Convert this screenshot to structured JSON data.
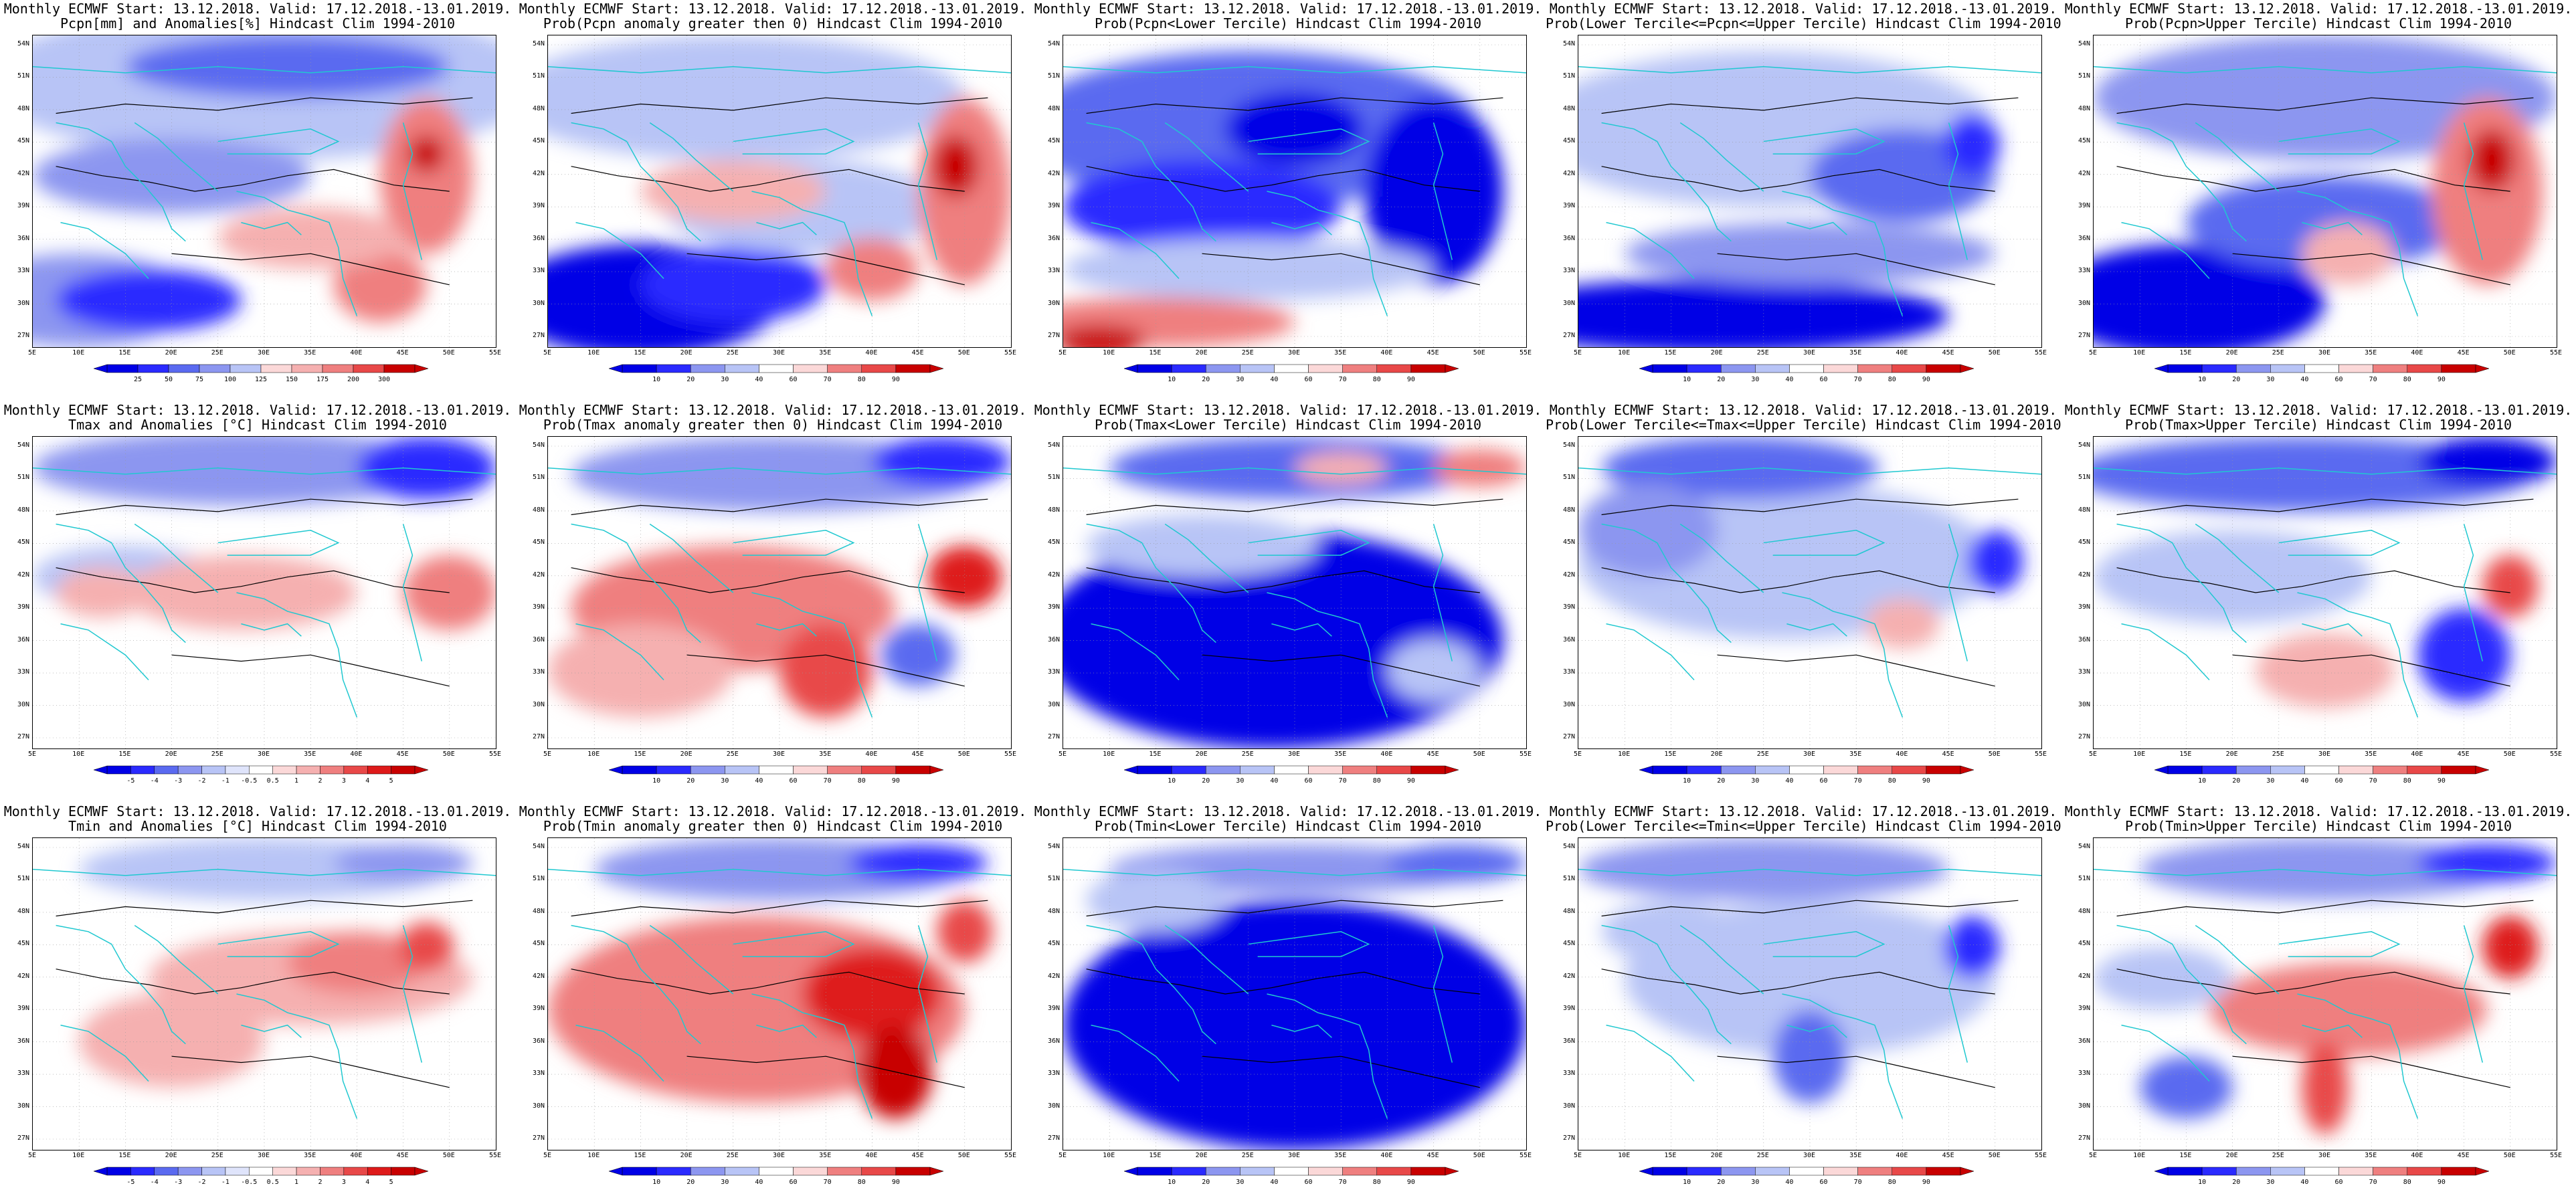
{
  "lat_labels": [
    "54N",
    "51N",
    "48N",
    "45N",
    "42N",
    "39N",
    "36N",
    "33N",
    "30N",
    "27N"
  ],
  "lon_labels": [
    "5E",
    "10E",
    "15E",
    "20E",
    "25E",
    "30E",
    "35E",
    "40E",
    "45E",
    "50E",
    "55E"
  ],
  "colors": {
    "blues": [
      "#0000e6",
      "#2a2aff",
      "#5a6af0",
      "#8c96f0",
      "#b8c4f6",
      "#dfe4fb"
    ],
    "reds": [
      "#fbd8d8",
      "#f5b0b0",
      "#ef7f7f",
      "#e84848",
      "#de1a1a",
      "#c80000"
    ],
    "coast": "#20c8d0",
    "contour": "#000000"
  },
  "colorbar_labels": {
    "pcpn": [
      "25",
      "50",
      "75",
      "100",
      "125",
      "150",
      "175",
      "200",
      "300"
    ],
    "prob": [
      "10",
      "20",
      "30",
      "40",
      "60",
      "70",
      "80",
      "90"
    ],
    "anom": [
      "-5",
      "-4",
      "-3",
      "-2",
      "-1",
      "-0.5",
      "0.5",
      "1",
      "2",
      "3",
      "4",
      "5"
    ]
  },
  "panels": [
    {
      "line1": "Monthly ECMWF Start: 13.12.2018. Valid: 17.12.2018.-13.01.2019.",
      "line2": "Pcpn[mm] and Anomalies[%] Hindcast Clim 1994-2010",
      "cbar": "pcpn",
      "pattern": "pcpn_anom"
    },
    {
      "line1": "Monthly ECMWF Start: 13.12.2018. Valid: 17.12.2018.-13.01.2019.",
      "line2": "Prob(Pcpn anomaly greater then 0) Hindcast Clim 1994-2010",
      "cbar": "prob",
      "pattern": "pcpn_prob"
    },
    {
      "line1": "Monthly ECMWF Start: 13.12.2018. Valid: 17.12.2018.-13.01.2019.",
      "line2": "Prob(Pcpn<Lower Tercile) Hindcast Clim 1994-2010",
      "cbar": "prob",
      "pattern": "pcpn_lower"
    },
    {
      "line1": "Monthly ECMWF Start: 13.12.2018. Valid: 17.12.2018.-13.01.2019.",
      "line2": "Prob(Lower Tercile<=Pcpn<=Upper Tercile) Hindcast Clim 1994-2010",
      "cbar": "prob",
      "pattern": "pcpn_mid"
    },
    {
      "line1": "Monthly ECMWF Start: 13.12.2018. Valid: 17.12.2018.-13.01.2019.",
      "line2": "Prob(Pcpn>Upper Tercile) Hindcast Clim 1994-2010",
      "cbar": "prob",
      "pattern": "pcpn_upper"
    },
    {
      "line1": "Monthly ECMWF Start: 13.12.2018. Valid: 17.12.2018.-13.01.2019.",
      "line2": "Tmax and Anomalies [°C] Hindcast Clim 1994-2010",
      "cbar": "anom",
      "pattern": "tmax_anom"
    },
    {
      "line1": "Monthly ECMWF Start: 13.12.2018. Valid: 17.12.2018.-13.01.2019.",
      "line2": "Prob(Tmax anomaly greater then 0) Hindcast Clim 1994-2010",
      "cbar": "prob",
      "pattern": "tmax_prob"
    },
    {
      "line1": "Monthly ECMWF Start: 13.12.2018. Valid: 17.12.2018.-13.01.2019.",
      "line2": "Prob(Tmax<Lower Tercile) Hindcast Clim 1994-2010",
      "cbar": "prob",
      "pattern": "tmax_lower"
    },
    {
      "line1": "Monthly ECMWF Start: 13.12.2018. Valid: 17.12.2018.-13.01.2019.",
      "line2": "Prob(Lower Tercile<=Tmax<=Upper Tercile) Hindcast Clim 1994-2010",
      "cbar": "prob",
      "pattern": "tmax_mid"
    },
    {
      "line1": "Monthly ECMWF Start: 13.12.2018. Valid: 17.12.2018.-13.01.2019.",
      "line2": "Prob(Tmax>Upper Tercile) Hindcast Clim 1994-2010",
      "cbar": "prob",
      "pattern": "tmax_upper"
    },
    {
      "line1": "Monthly ECMWF Start: 13.12.2018. Valid: 17.12.2018.-13.01.2019.",
      "line2": "Tmin and Anomalies [°C] Hindcast Clim 1994-2010",
      "cbar": "anom",
      "pattern": "tmin_anom"
    },
    {
      "line1": "Monthly ECMWF Start: 13.12.2018. Valid: 17.12.2018.-13.01.2019.",
      "line2": "Prob(Tmin anomaly greater then 0) Hindcast Clim 1994-2010",
      "cbar": "prob",
      "pattern": "tmin_prob"
    },
    {
      "line1": "Monthly ECMWF Start: 13.12.2018. Valid: 17.12.2018.-13.01.2019.",
      "line2": "Prob(Tmin<Lower Tercile) Hindcast Clim 1994-2010",
      "cbar": "prob",
      "pattern": "tmin_lower"
    },
    {
      "line1": "Monthly ECMWF Start: 13.12.2018. Valid: 17.12.2018.-13.01.2019.",
      "line2": "Prob(Lower Tercile<=Tmin<=Upper Tercile) Hindcast Clim 1994-2010",
      "cbar": "prob",
      "pattern": "tmin_mid"
    },
    {
      "line1": "Monthly ECMWF Start: 13.12.2018. Valid: 17.12.2018.-13.01.2019.",
      "line2": "Prob(Tmin>Upper Tercile) Hindcast Clim 1994-2010",
      "cbar": "prob",
      "pattern": "tmin_upper"
    }
  ]
}
